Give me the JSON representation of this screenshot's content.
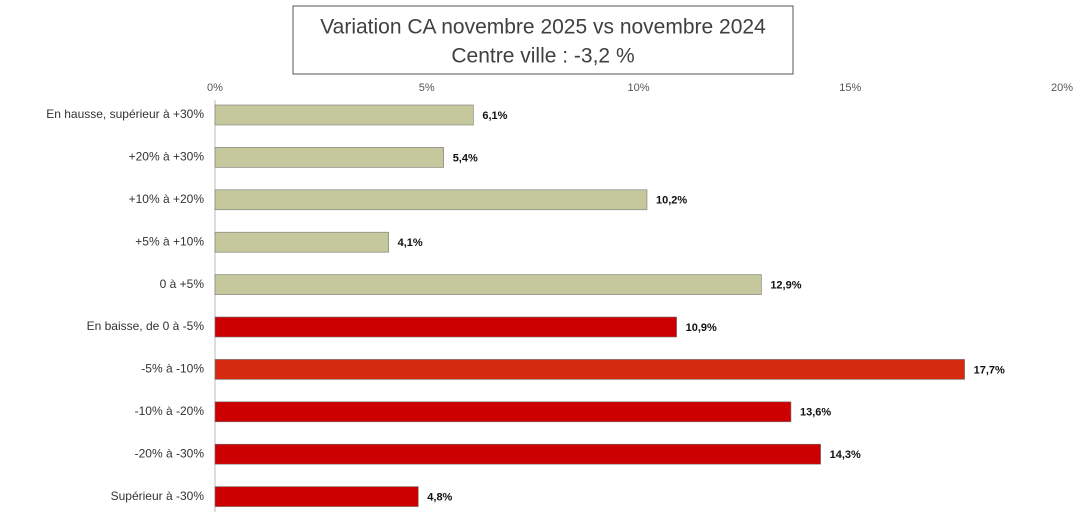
{
  "chart_data": {
    "type": "hbar",
    "title": "Variation CA novembre 2025 vs novembre 2024",
    "subtitle": "Centre ville  : -3,2 %",
    "categories": [
      "En hausse, supérieur à +30%",
      "+20% à +30%",
      "+10% à +20%",
      "+5% à +10%",
      "0 à +5%",
      "En baisse, de 0 à -5%",
      "-5% à -10%",
      "-10% à -20%",
      "-20% à -30%",
      "Supérieur à -30%"
    ],
    "series": [
      {
        "values": [
          6.1,
          5.4,
          10.2,
          4.1,
          12.9,
          10.9,
          17.7,
          13.6,
          14.3,
          4.8
        ],
        "value_labels": [
          "6,1%",
          "5,4%",
          "10,2%",
          "4,1%",
          "12,9%",
          "10,9%",
          "17,7%",
          "13,6%",
          "14,3%",
          "4,8%"
        ],
        "colors": [
          "#c5c89c",
          "#c5c89c",
          "#c5c89c",
          "#c5c89c",
          "#c5c89c",
          "#cc0000",
          "#d42a10",
          "#cc0000",
          "#cc0000",
          "#cc0000"
        ]
      }
    ],
    "xlim": [
      0,
      20
    ],
    "xticks": [
      {
        "value": 0,
        "label": "0%"
      },
      {
        "value": 5,
        "label": "5%"
      },
      {
        "value": 10,
        "label": "10%"
      },
      {
        "value": 15,
        "label": "15%"
      },
      {
        "value": 20,
        "label": "20%"
      }
    ]
  }
}
